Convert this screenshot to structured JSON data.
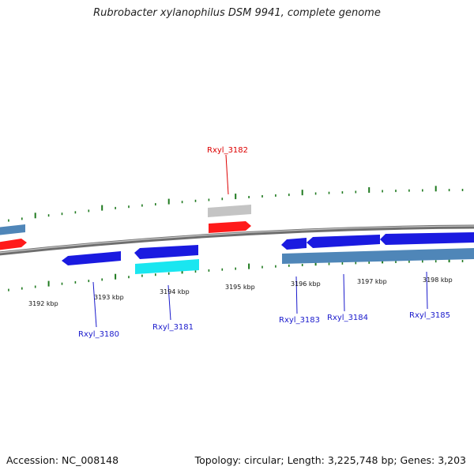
{
  "title": "Rubrobacter xylanophilus DSM 9941, complete genome",
  "footer": {
    "accession": "Accession: NC_008148",
    "summary": "Topology: circular; Length: 3,225,748 bp; Genes: 3,203"
  },
  "ticks": {
    "labels": [
      "3192 kbp",
      "3193 kbp",
      "3194 kbp",
      "3195 kbp",
      "3196 kbp",
      "3197 kbp",
      "3198 kbp"
    ]
  },
  "gene_labels": {
    "rxyl_3180": "Rxyl_3180",
    "rxyl_3181": "Rxyl_3181",
    "rxyl_3182": "Rxyl_3182",
    "rxyl_3183": "Rxyl_3183",
    "rxyl_3184": "Rxyl_3184",
    "rxyl_3185": "Rxyl_3185"
  },
  "colors": {
    "gene_blue": "#1a1ae0",
    "gene_red": "#ff1a1a",
    "gene_cyan": "#1ae6f0",
    "gene_steel": "#4f86b8",
    "gene_grey": "#c4c4c4",
    "backbone": "#808080",
    "tick": "#1f7a1f",
    "label_blue": "#1a1acc",
    "label_red": "#dd0000"
  }
}
